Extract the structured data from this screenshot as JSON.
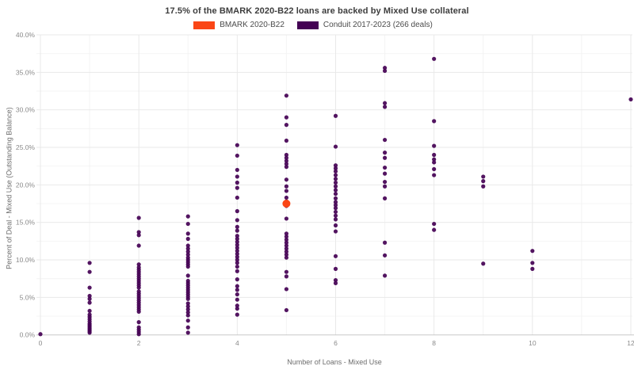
{
  "title": "17.5% of the BMARK 2020-B22 loans are backed by Mixed Use collateral",
  "legend": {
    "items": [
      {
        "label": "BMARK 2020-B22",
        "color": "#fa4616"
      },
      {
        "label": "Conduit 2017-2023 (266 deals)",
        "color": "#440154"
      }
    ]
  },
  "chart_data": {
    "type": "scatter",
    "title": "17.5% of the BMARK 2020-B22 loans are backed by Mixed Use collateral",
    "xlabel": "Number of Loans - Mixed Use",
    "ylabel": "Percent of Deal - Mixed Use (Outstanding Balance)",
    "xlim": [
      0,
      12
    ],
    "ylim": [
      0,
      40
    ],
    "x_ticks": [
      0,
      2,
      4,
      6,
      8,
      10,
      12
    ],
    "y_ticks": [
      0,
      5,
      10,
      15,
      20,
      25,
      30,
      35,
      40
    ],
    "y_tick_suffix": "%",
    "grid": true,
    "legend_position": "top-center",
    "series": [
      {
        "name": "Conduit 2017-2023 (266 deals)",
        "color": "#440154",
        "marker_size": 2.6,
        "opacity": 0.92,
        "points": [
          [
            0,
            0.1
          ],
          [
            1,
            9.6
          ],
          [
            1,
            8.4
          ],
          [
            1,
            6.3
          ],
          [
            1,
            5.2
          ],
          [
            1,
            4.8
          ],
          [
            1,
            4.3
          ],
          [
            1,
            3.2
          ],
          [
            1,
            2.7
          ],
          [
            1,
            2.4
          ],
          [
            1,
            2.1
          ],
          [
            1,
            1.8
          ],
          [
            1,
            1.5
          ],
          [
            1,
            1.3
          ],
          [
            1,
            1.1
          ],
          [
            1,
            0.9
          ],
          [
            1,
            0.7
          ],
          [
            1,
            0.5
          ],
          [
            1,
            0.3
          ],
          [
            2,
            15.6
          ],
          [
            2,
            13.7
          ],
          [
            2,
            13.3
          ],
          [
            2,
            11.9
          ],
          [
            2,
            9.4
          ],
          [
            2,
            9.0
          ],
          [
            2,
            8.7
          ],
          [
            2,
            8.4
          ],
          [
            2,
            8.1
          ],
          [
            2,
            7.8
          ],
          [
            2,
            7.5
          ],
          [
            2,
            7.2
          ],
          [
            2,
            6.9
          ],
          [
            2,
            6.6
          ],
          [
            2,
            6.3
          ],
          [
            2,
            5.8
          ],
          [
            2,
            5.5
          ],
          [
            2,
            5.2
          ],
          [
            2,
            4.9
          ],
          [
            2,
            4.6
          ],
          [
            2,
            4.3
          ],
          [
            2,
            4.0
          ],
          [
            2,
            3.7
          ],
          [
            2,
            3.4
          ],
          [
            2,
            3.1
          ],
          [
            2,
            1.7
          ],
          [
            2,
            1.0
          ],
          [
            2,
            0.7
          ],
          [
            2,
            0.4
          ],
          [
            2,
            0.1
          ],
          [
            3,
            15.8
          ],
          [
            3,
            14.8
          ],
          [
            3,
            13.5
          ],
          [
            3,
            12.8
          ],
          [
            3,
            11.9
          ],
          [
            3,
            11.5
          ],
          [
            3,
            11.1
          ],
          [
            3,
            10.7
          ],
          [
            3,
            10.3
          ],
          [
            3,
            10.0
          ],
          [
            3,
            9.7
          ],
          [
            3,
            9.4
          ],
          [
            3,
            9.1
          ],
          [
            3,
            7.9
          ],
          [
            3,
            7.2
          ],
          [
            3,
            6.9
          ],
          [
            3,
            6.6
          ],
          [
            3,
            6.3
          ],
          [
            3,
            6.0
          ],
          [
            3,
            5.7
          ],
          [
            3,
            5.4
          ],
          [
            3,
            5.1
          ],
          [
            3,
            4.8
          ],
          [
            3,
            4.2
          ],
          [
            3,
            3.8
          ],
          [
            3,
            3.4
          ],
          [
            3,
            3.0
          ],
          [
            3,
            2.6
          ],
          [
            3,
            1.9
          ],
          [
            3,
            1.0
          ],
          [
            3,
            0.3
          ],
          [
            4,
            25.3
          ],
          [
            4,
            23.9
          ],
          [
            4,
            22.0
          ],
          [
            4,
            21.1
          ],
          [
            4,
            20.3
          ],
          [
            4,
            19.6
          ],
          [
            4,
            18.3
          ],
          [
            4,
            16.5
          ],
          [
            4,
            15.3
          ],
          [
            4,
            14.4
          ],
          [
            4,
            13.9
          ],
          [
            4,
            13.2
          ],
          [
            4,
            12.8
          ],
          [
            4,
            12.4
          ],
          [
            4,
            12.0
          ],
          [
            4,
            11.6
          ],
          [
            4,
            11.2
          ],
          [
            4,
            10.8
          ],
          [
            4,
            10.4
          ],
          [
            4,
            10.0
          ],
          [
            4,
            9.6
          ],
          [
            4,
            9.1
          ],
          [
            4,
            8.5
          ],
          [
            4,
            7.4
          ],
          [
            4,
            6.5
          ],
          [
            4,
            6.0
          ],
          [
            4,
            5.4
          ],
          [
            4,
            4.7
          ],
          [
            4,
            3.9
          ],
          [
            4,
            3.5
          ],
          [
            4,
            2.7
          ],
          [
            5,
            31.9
          ],
          [
            5,
            29.0
          ],
          [
            5,
            28.0
          ],
          [
            5,
            25.9
          ],
          [
            5,
            24.0
          ],
          [
            5,
            23.6
          ],
          [
            5,
            23.2
          ],
          [
            5,
            22.8
          ],
          [
            5,
            22.4
          ],
          [
            5,
            20.7
          ],
          [
            5,
            19.8
          ],
          [
            5,
            19.2
          ],
          [
            5,
            18.3
          ],
          [
            5,
            17.8
          ],
          [
            5,
            17.2
          ],
          [
            5,
            15.5
          ],
          [
            5,
            13.5
          ],
          [
            5,
            13.1
          ],
          [
            5,
            12.7
          ],
          [
            5,
            12.3
          ],
          [
            5,
            11.9
          ],
          [
            5,
            11.5
          ],
          [
            5,
            11.1
          ],
          [
            5,
            10.7
          ],
          [
            5,
            10.3
          ],
          [
            5,
            8.4
          ],
          [
            5,
            7.8
          ],
          [
            5,
            6.1
          ],
          [
            5,
            3.3
          ],
          [
            6,
            29.2
          ],
          [
            6,
            25.1
          ],
          [
            6,
            22.6
          ],
          [
            6,
            22.2
          ],
          [
            6,
            21.8
          ],
          [
            6,
            21.3
          ],
          [
            6,
            20.8
          ],
          [
            6,
            20.3
          ],
          [
            6,
            19.8
          ],
          [
            6,
            19.3
          ],
          [
            6,
            18.8
          ],
          [
            6,
            18.2
          ],
          [
            6,
            17.7
          ],
          [
            6,
            17.3
          ],
          [
            6,
            16.9
          ],
          [
            6,
            16.4
          ],
          [
            6,
            15.9
          ],
          [
            6,
            15.4
          ],
          [
            6,
            14.6
          ],
          [
            6,
            13.8
          ],
          [
            6,
            10.5
          ],
          [
            6,
            8.8
          ],
          [
            6,
            7.3
          ],
          [
            6,
            6.9
          ],
          [
            7,
            35.6
          ],
          [
            7,
            35.2
          ],
          [
            7,
            30.9
          ],
          [
            7,
            30.4
          ],
          [
            7,
            26.0
          ],
          [
            7,
            24.3
          ],
          [
            7,
            23.6
          ],
          [
            7,
            22.3
          ],
          [
            7,
            21.5
          ],
          [
            7,
            20.4
          ],
          [
            7,
            19.8
          ],
          [
            7,
            18.2
          ],
          [
            7,
            12.3
          ],
          [
            7,
            10.6
          ],
          [
            7,
            7.9
          ],
          [
            8,
            36.8
          ],
          [
            8,
            28.5
          ],
          [
            8,
            25.2
          ],
          [
            8,
            24.0
          ],
          [
            8,
            23.4
          ],
          [
            8,
            23.0
          ],
          [
            8,
            22.1
          ],
          [
            8,
            21.3
          ],
          [
            8,
            14.8
          ],
          [
            8,
            14.0
          ],
          [
            9,
            21.1
          ],
          [
            9,
            20.5
          ],
          [
            9,
            19.8
          ],
          [
            9,
            9.5
          ],
          [
            10,
            11.2
          ],
          [
            10,
            9.6
          ],
          [
            10,
            8.8
          ],
          [
            12,
            31.4
          ]
        ]
      },
      {
        "name": "BMARK 2020-B22",
        "color": "#fa4616",
        "marker_size": 5,
        "opacity": 1,
        "points": [
          [
            5,
            17.5
          ]
        ]
      }
    ]
  },
  "style": {
    "grid_major": "#e9e9e9",
    "grid_minor": "#f4f4f4",
    "axis_line": "#c8c8c8",
    "tick_text": "#8a8a8a"
  }
}
